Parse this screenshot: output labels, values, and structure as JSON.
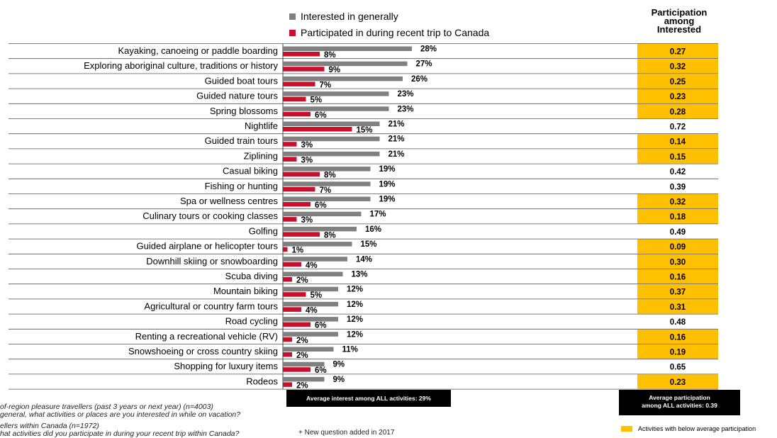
{
  "legend": {
    "interested_label": "Interested in generally",
    "participated_label": "Participated in during recent trip to Canada"
  },
  "participation_header": {
    "line1": "Participation",
    "line2": "among",
    "line3": "Interested"
  },
  "colors": {
    "interested": "#808080",
    "participated": "#C8102E",
    "highlight": "#FFC000"
  },
  "chart_data": {
    "type": "bar",
    "orientation": "horizontal",
    "categories": [
      "Kayaking, canoeing or paddle boarding",
      "Exploring aboriginal culture, traditions or history",
      "Guided boat tours",
      "Guided nature tours",
      "Spring blossoms",
      "Nightlife",
      "Guided train tours",
      "Ziplining",
      "Casual biking",
      "Fishing or hunting",
      "Spa or wellness centres",
      "Culinary tours or cooking classes",
      "Golfing",
      "Guided airplane or helicopter tours",
      "Downhill skiing or snowboarding",
      "Scuba diving",
      "Mountain biking",
      "Agricultural or country farm tours",
      "Road cycling",
      "Renting a recreational vehicle (RV)",
      "Snowshoeing or cross country skiing",
      "Shopping for luxury items",
      "Rodeos"
    ],
    "series": [
      {
        "name": "Interested in generally",
        "values": [
          28,
          27,
          26,
          23,
          23,
          21,
          21,
          21,
          19,
          19,
          19,
          17,
          16,
          15,
          14,
          13,
          12,
          12,
          12,
          12,
          11,
          9,
          9
        ],
        "labels": [
          "28%",
          "27%",
          "26%",
          "23%",
          "23%",
          "21%",
          "21%",
          "21%",
          "19%",
          "19%",
          "19%",
          "17%",
          "16%",
          "15%",
          "14%",
          "13%",
          "12%",
          "12%",
          "12%",
          "12%",
          "11%",
          "9%",
          "9%"
        ]
      },
      {
        "name": "Participated in during recent trip to Canada",
        "values": [
          8,
          9,
          7,
          5,
          6,
          15,
          3,
          3,
          8,
          7,
          6,
          3,
          8,
          1,
          4,
          2,
          5,
          4,
          6,
          2,
          2,
          6,
          2
        ],
        "labels": [
          "8%",
          "9%",
          "7%",
          "5%",
          "6%",
          "15%",
          "3%",
          "3%",
          "8%",
          "7%",
          "6%",
          "3%",
          "8%",
          "1%",
          "4%",
          "2%",
          "5%",
          "4%",
          "6%",
          "2%",
          "2%",
          "6%",
          "2%"
        ]
      }
    ],
    "participation_among_interested": [
      "0.27",
      "0.32",
      "0.25",
      "0.23",
      "0.28",
      "0.72",
      "0.14",
      "0.15",
      "0.42",
      "0.39",
      "0.32",
      "0.18",
      "0.49",
      "0.09",
      "0.30",
      "0.16",
      "0.37",
      "0.31",
      "0.48",
      "0.16",
      "0.19",
      "0.65",
      "0.23"
    ],
    "below_average": [
      true,
      true,
      true,
      true,
      true,
      false,
      true,
      true,
      false,
      false,
      true,
      true,
      false,
      true,
      true,
      true,
      true,
      true,
      false,
      true,
      true,
      false,
      true
    ],
    "xlim": [
      0,
      40
    ]
  },
  "avg_interest": "Average interest among ALL activities: 29%",
  "avg_participation": {
    "line1": "Average participation",
    "line2": "among ALL activities: 0.39"
  },
  "notes": {
    "line1": "of-region pleasure travellers (past 3 years or next year) (n=4003)",
    "line2": "general, what activities or places are you interested in while on vacation?",
    "line3": "ellers within Canada (n=1972)",
    "line4": "hat activities did you participate in during your recent trip within Canada?"
  },
  "footnote": "+ New question added in 2017",
  "key_label": "Activities with below average participation"
}
